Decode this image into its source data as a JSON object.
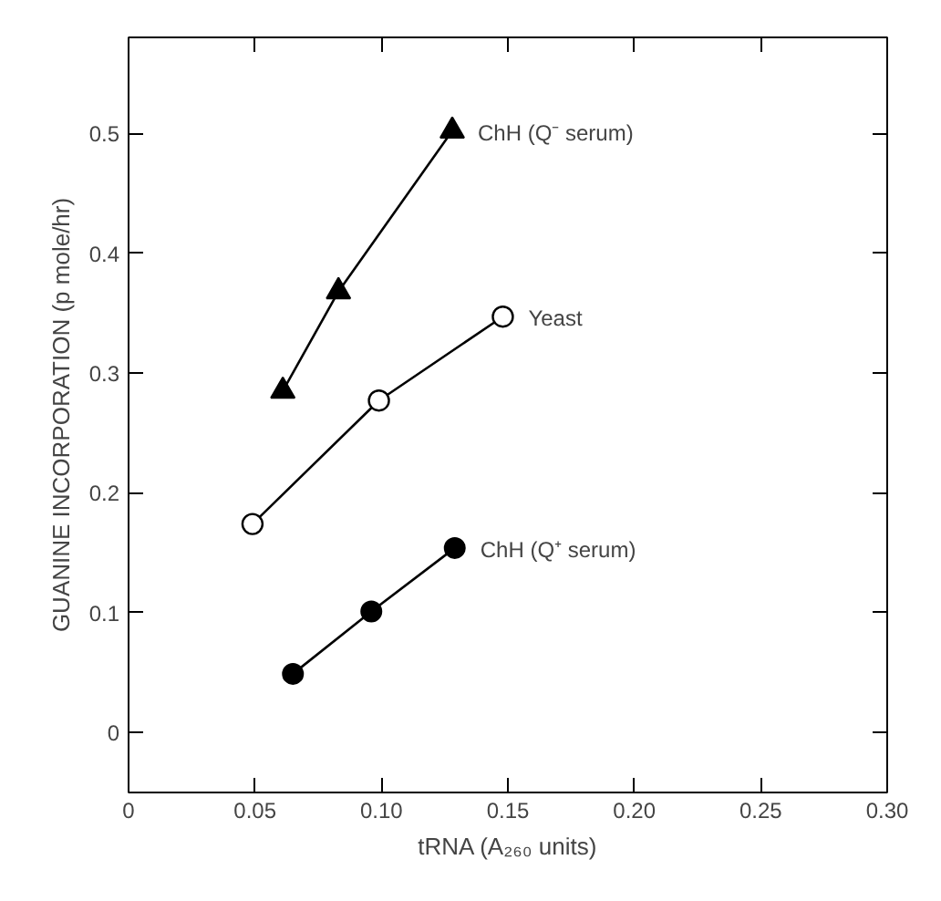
{
  "chart_data": {
    "type": "line",
    "xlabel": "tRNA (A₂₆₀ units)",
    "ylabel": "GUANINE INCORPORATION (p mole/hr)",
    "xlim": [
      0,
      0.3
    ],
    "xticks": [
      0,
      0.05,
      {
        "value": 0.1,
        "label": "0.10"
      },
      0.15,
      {
        "value": 0.2,
        "label": "0.20"
      },
      0.25,
      {
        "value": 0.3,
        "label": "0.30"
      }
    ],
    "ylim": [
      -0.05,
      0.58
    ],
    "yticks": [
      0,
      0.1,
      0.2,
      0.3,
      0.4,
      0.5
    ],
    "grid": false,
    "series": [
      {
        "name": "ChH (Q⁻ serum)",
        "color": "#000000",
        "marker": "triangle",
        "x": [
          0.061,
          0.083,
          0.128
        ],
        "values": [
          0.285,
          0.368,
          0.502
        ]
      },
      {
        "name": "Yeast",
        "color": "#000000",
        "marker": "circle_open",
        "x": [
          0.049,
          0.099,
          0.148
        ],
        "values": [
          0.174,
          0.277,
          0.347
        ]
      },
      {
        "name": "ChH (Q⁺ serum)",
        "color": "#000000",
        "marker": "circle",
        "x": [
          0.065,
          0.096,
          0.129
        ],
        "values": [
          0.049,
          0.101,
          0.154
        ]
      }
    ]
  }
}
